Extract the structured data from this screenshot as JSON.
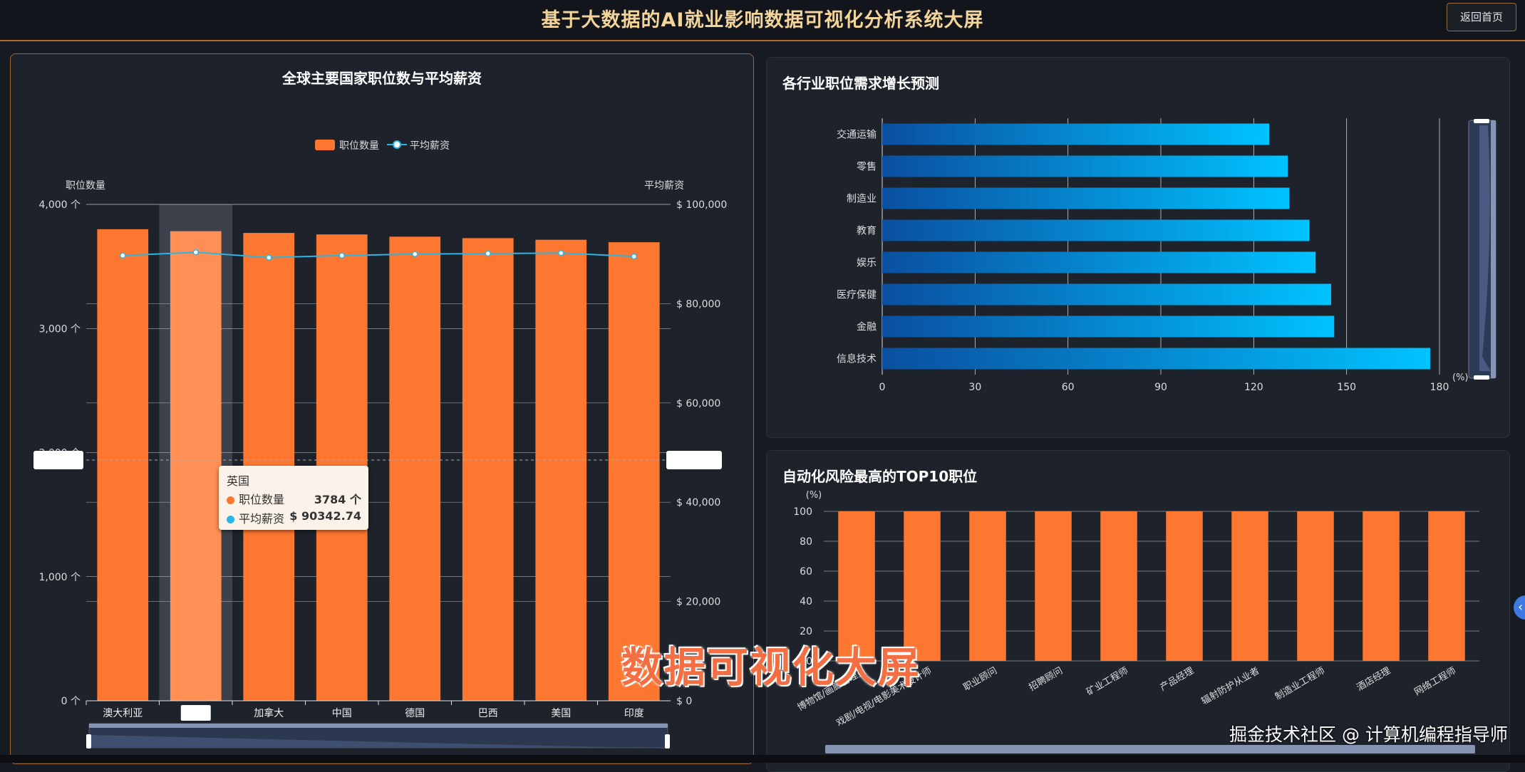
{
  "header": {
    "title": "基于大数据的AI就业影响数据可视化分析系统大屏",
    "back_label": "返回首页"
  },
  "colors": {
    "accent_orange": "#fe7730",
    "line_cyan": "#29b6e6",
    "bar_blue_dark": "#0a4fa0",
    "bar_blue_light": "#00c3ff",
    "title_gold": "#f3d49a"
  },
  "panels": {
    "country": {
      "title": "全球主要国家职位数与平均薪资",
      "legend_jobs": "职位数量",
      "legend_salary": "平均薪资"
    },
    "growth": {
      "title": "各行业职位需求增长预测"
    },
    "risk": {
      "title": "自动化风险最高的TOP10职位"
    }
  },
  "tooltip": {
    "title": "英国",
    "row1_label": "职位数量",
    "row1_value": "3784 个",
    "row2_label": "平均薪资",
    "row2_value": "$ 90342.74"
  },
  "overlay": {
    "caption": "数据可视化大屏",
    "watermark": "掘金技术社区 @ 计算机编程指导师"
  },
  "chart_data": [
    {
      "type": "bar",
      "title": "全球主要国家职位数与平均薪资",
      "categories": [
        "澳大利亚",
        "英国",
        "加拿大",
        "中国",
        "德国",
        "巴西",
        "美国",
        "印度"
      ],
      "hidden_category_label_index": 1,
      "highlight_index": 1,
      "ylabel": "职位数量",
      "y2label": "平均薪资",
      "ylim": [
        0,
        4000
      ],
      "y2lim": [
        0,
        100000
      ],
      "y_ticks": [
        "0 个",
        "1,000 个",
        "2,000 个",
        "3,000 个",
        "4,000 个"
      ],
      "y2_ticks": [
        "$ 0",
        "$ 20,000",
        "$ 40,000",
        "$ 60,000",
        "$ 80,000",
        "$ 100,000"
      ],
      "legend_position": "top-center",
      "series": [
        {
          "name": "职位数量",
          "type": "bar",
          "values": [
            3800,
            3784,
            3770,
            3758,
            3740,
            3728,
            3715,
            3695
          ]
        },
        {
          "name": "平均薪资",
          "type": "line",
          "values": [
            89700,
            90342.74,
            89300,
            89700,
            90000,
            90100,
            90200,
            89500
          ]
        }
      ]
    },
    {
      "type": "bar",
      "orientation": "horizontal",
      "title": "各行业职位需求增长预测",
      "categories": [
        "交通运输",
        "零售",
        "制造业",
        "教育",
        "娱乐",
        "医疗保健",
        "金融",
        "信息技术"
      ],
      "values": [
        125,
        131,
        131.5,
        138,
        140,
        145,
        146,
        177
      ],
      "xlim": [
        0,
        180
      ],
      "x_ticks": [
        "0",
        "30",
        "60",
        "90",
        "120",
        "150",
        "180"
      ],
      "unit": "(%)"
    },
    {
      "type": "bar",
      "title": "自动化风险最高的TOP10职位",
      "categories": [
        "博物馆/画廊管理员",
        "戏剧/电视/电影美术设计师",
        "职业顾问",
        "招聘顾问",
        "矿业工程师",
        "产品经理",
        "辐射防护从业者",
        "制造业工程师",
        "酒店经理",
        "网络工程师"
      ],
      "values": [
        100,
        100,
        100,
        100,
        100,
        100,
        100,
        100,
        100,
        100
      ],
      "ylim": [
        0,
        100
      ],
      "y_ticks": [
        "0",
        "20",
        "40",
        "60",
        "80",
        "100"
      ],
      "unit": "(%)"
    }
  ]
}
